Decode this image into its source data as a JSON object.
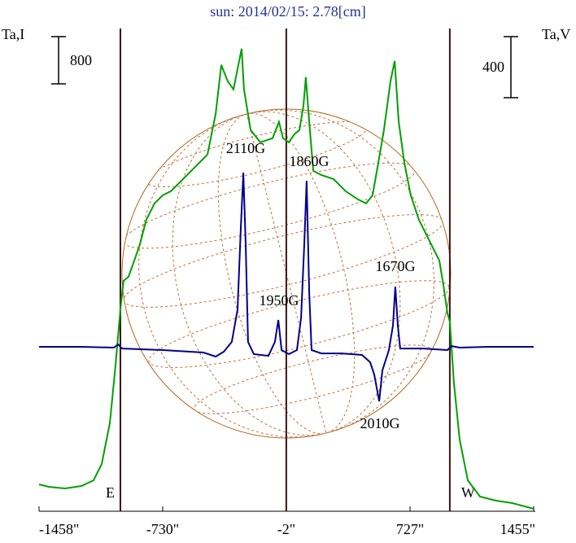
{
  "chart_data": {
    "type": "line",
    "title": "sun: 2014/02/15: 2.78[cm]",
    "y_label": "Ta,I",
    "y2_label": "Ta,V",
    "xlim": [
      -1458,
      1455
    ],
    "xticks": [
      {
        "value": -1458,
        "label": "-1458\""
      },
      {
        "value": -730,
        "label": "-730\""
      },
      {
        "value": -2,
        "label": "-2\""
      },
      {
        "value": 727,
        "label": "727\""
      },
      {
        "value": 1455,
        "label": "1455\""
      }
    ],
    "ylim": [
      0,
      8180
    ],
    "y2lim": [
      -1077,
      2085
    ],
    "scale_bars": [
      {
        "value": 800,
        "axis": "y"
      },
      {
        "value": 400,
        "axis": "y2"
      }
    ],
    "limb_markers": {
      "x": [
        -979,
        -2,
        961
      ],
      "labels": [
        "E",
        null,
        "W"
      ],
      "color": "#3a1414"
    },
    "series": [
      {
        "name": "I",
        "color": "#00a000",
        "axis": "y",
        "x": [
          -1458,
          -1400,
          -1305,
          -1209,
          -1137,
          -1089,
          -1041,
          -1008,
          -979,
          -960,
          -931,
          -897,
          -864,
          -826,
          -778,
          -730,
          -682,
          -610,
          -538,
          -466,
          -418,
          -385,
          -347,
          -313,
          -289,
          -265,
          -251,
          -212,
          -155,
          -83,
          -45,
          -21,
          13,
          46,
          75,
          99,
          113,
          133,
          157,
          204,
          276,
          348,
          420,
          468,
          506,
          540,
          573,
          612,
          636,
          660,
          693,
          731,
          779,
          827,
          875,
          899,
          923,
          947,
          961,
          985,
          1019,
          1067,
          1139,
          1234,
          1330,
          1402,
          1455
        ],
        "values": [
          455,
          414,
          386,
          428,
          524,
          800,
          1490,
          2456,
          3422,
          3905,
          3974,
          4250,
          4526,
          4940,
          5216,
          5354,
          5423,
          5630,
          5837,
          6044,
          6734,
          7562,
          7286,
          7148,
          7493,
          7838,
          7148,
          6458,
          6251,
          6320,
          6596,
          6320,
          6251,
          6389,
          6458,
          6872,
          7355,
          6596,
          5768,
          5699,
          5630,
          5423,
          5285,
          5216,
          5354,
          5906,
          6458,
          7286,
          7631,
          6596,
          5906,
          5354,
          4940,
          4664,
          4388,
          4250,
          3836,
          3353,
          3215,
          2180,
          1214,
          524,
          248,
          179,
          138,
          83,
          41
        ]
      },
      {
        "name": "V",
        "color": "#00008b",
        "axis": "y2",
        "x": [
          -1458,
          -1209,
          -1017,
          -993,
          -969,
          -730,
          -490,
          -418,
          -370,
          -323,
          -289,
          -270,
          -255,
          -241,
          -227,
          -193,
          -107,
          -69,
          -49,
          -30,
          13,
          61,
          85,
          104,
          118,
          133,
          147,
          204,
          324,
          444,
          492,
          516,
          545,
          564,
          602,
          626,
          640,
          655,
          669,
          803,
          947,
          971,
          1019,
          1187,
          1455
        ],
        "values": [
          0,
          0,
          -5,
          16,
          -11,
          -21,
          -37,
          -64,
          -32,
          32,
          245,
          778,
          1141,
          671,
          32,
          -48,
          -59,
          32,
          176,
          -21,
          -48,
          -21,
          192,
          671,
          1087,
          352,
          -21,
          -43,
          -43,
          -53,
          -101,
          -181,
          -357,
          -155,
          -21,
          139,
          394,
          139,
          -11,
          -11,
          -21,
          5,
          -5,
          0,
          0
        ]
      }
    ],
    "annotations": [
      {
        "text": "2110G"
      },
      {
        "text": "1860G"
      },
      {
        "text": "1950G"
      },
      {
        "text": "1670G"
      },
      {
        "text": "2010G"
      }
    ]
  }
}
